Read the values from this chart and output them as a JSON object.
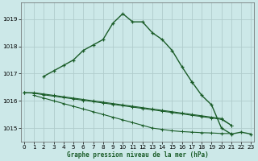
{
  "title": "Graphe pression niveau de la mer (hPa)",
  "bg_color": "#cce8e8",
  "grid_color": "#b0cccc",
  "line_color": "#1a5c28",
  "ylim": [
    1014.5,
    1019.6
  ],
  "xlim": [
    -0.3,
    23.3
  ],
  "yticks": [
    1015,
    1016,
    1017,
    1018,
    1019
  ],
  "xticks": [
    0,
    1,
    2,
    3,
    4,
    5,
    6,
    7,
    8,
    9,
    10,
    11,
    12,
    13,
    14,
    15,
    16,
    17,
    18,
    19,
    20,
    21,
    22,
    23
  ],
  "main_line": [
    1016.3,
    null,
    1016.9,
    1017.1,
    1017.3,
    1017.5,
    1017.85,
    1018.05,
    1018.25,
    1018.85,
    1019.2,
    1018.9,
    1018.9,
    1018.5,
    1018.25,
    1017.85,
    1017.25,
    1016.7,
    null,
    null,
    null,
    null,
    null,
    null
  ],
  "flat1": [
    1016.3,
    1016.3,
    1016.25,
    1016.2,
    1016.15,
    1016.1,
    1016.05,
    1016.0,
    1015.95,
    1015.9,
    1015.85,
    1015.8,
    1015.75,
    1015.7,
    1015.65,
    1015.6,
    1015.55,
    1015.5,
    1015.45,
    1015.4,
    1015.35,
    1015.1,
    null,
    null
  ],
  "flat2": [
    1016.3,
    1016.28,
    1016.22,
    1016.17,
    1016.12,
    1016.07,
    1016.02,
    1015.97,
    1015.92,
    1015.87,
    1015.82,
    1015.77,
    1015.72,
    1015.67,
    1015.62,
    1015.57,
    1015.52,
    1015.47,
    1015.42,
    1015.37,
    1015.32,
    1015.1,
    null,
    null
  ],
  "flat3": [
    null,
    1016.2,
    1016.1,
    1016.0,
    1015.9,
    1015.8,
    1015.7,
    1015.6,
    1015.5,
    1015.4,
    1015.3,
    1015.2,
    1015.1,
    1015.0,
    1014.95,
    1014.9,
    1014.87,
    1014.85,
    1014.83,
    1014.82,
    1014.8,
    1014.8,
    null,
    null
  ],
  "tail_line": [
    null,
    null,
    null,
    null,
    null,
    null,
    null,
    null,
    null,
    null,
    null,
    null,
    null,
    null,
    null,
    null,
    null,
    1016.7,
    1016.2,
    1015.85,
    1015.0,
    1014.78,
    1014.85,
    1014.78
  ]
}
